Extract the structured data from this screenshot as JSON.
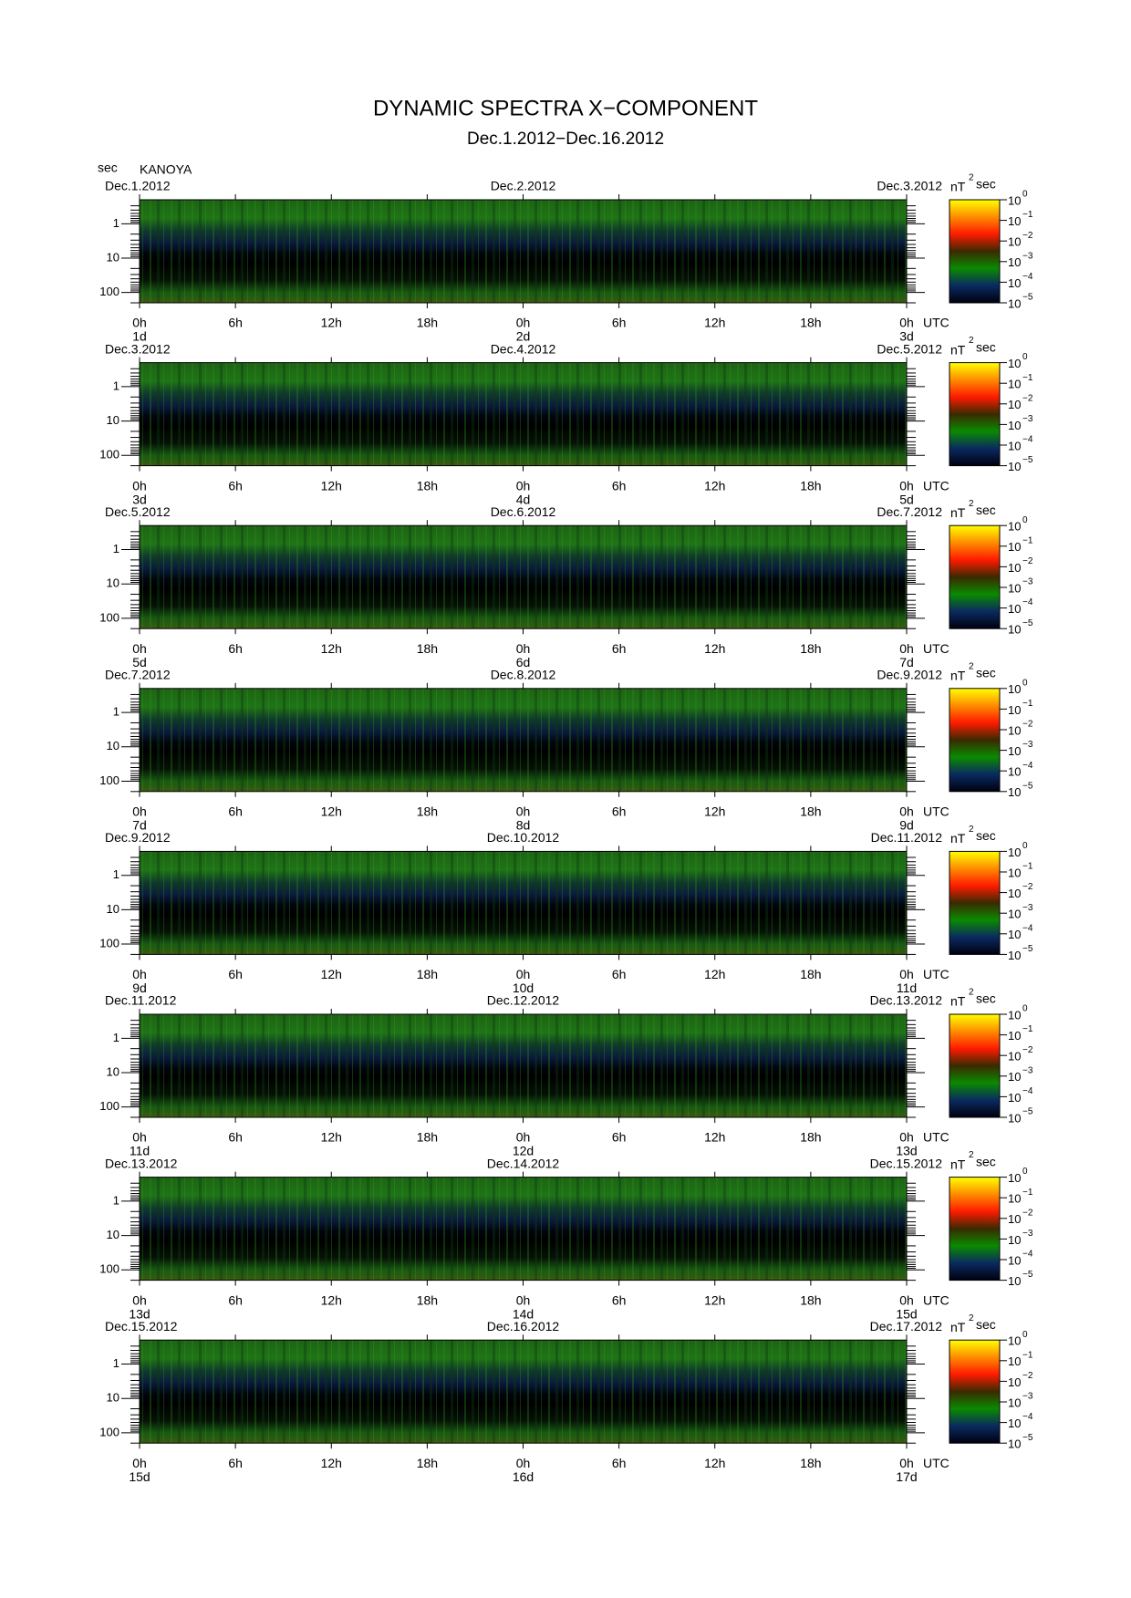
{
  "title": "DYNAMIC SPECTRA X−COMPONENT",
  "subtitle": "Dec.1.2012−Dec.16.2012",
  "ylabel": "sec",
  "station": "KANOYA",
  "chart_data": [
    {
      "type": "spectrogram",
      "date_labels": [
        "Dec.1.2012",
        "Dec.2.2012",
        "Dec.3.2012"
      ],
      "day_labels": [
        "1d",
        "2d",
        "3d"
      ],
      "xlabel": "UTC",
      "xlim": [
        0,
        48
      ],
      "xticks": [
        {
          "value": 0,
          "label": "0h"
        },
        {
          "value": 6,
          "label": "6h"
        },
        {
          "value": 12,
          "label": "12h"
        },
        {
          "value": 18,
          "label": "18h"
        },
        {
          "value": 24,
          "label": "0h"
        },
        {
          "value": 30,
          "label": "6h"
        },
        {
          "value": 36,
          "label": "12h"
        },
        {
          "value": 42,
          "label": "18h"
        },
        {
          "value": 48,
          "label": "0h"
        }
      ],
      "ylim": [
        0.2,
        200
      ],
      "yscale": "log",
      "yticks": [
        1,
        10,
        100
      ],
      "yminorticks": [
        0.3,
        0.4,
        0.5,
        0.6,
        0.7,
        0.8,
        0.9,
        2,
        3,
        4,
        5,
        6,
        7,
        8,
        9,
        20,
        30,
        40,
        50,
        60,
        70,
        80,
        90,
        200
      ],
      "colorbar_label": "nT",
      "colorbar_label_power": "2",
      "colorbar_label_unit": "sec",
      "colorbar_lim": [
        1e-05,
        1
      ],
      "colorbar_ticks": [
        {
          "value": 1,
          "label": "10",
          "exponent": "0"
        },
        {
          "value": 0.1,
          "label": "10",
          "exponent": "−1"
        },
        {
          "value": 0.01,
          "label": "10",
          "exponent": "−2"
        },
        {
          "value": 0.001,
          "label": "10",
          "exponent": "−3"
        },
        {
          "value": 0.0001,
          "label": "10",
          "exponent": "−4"
        },
        {
          "value": 1e-05,
          "label": "10",
          "exponent": "−5"
        }
      ]
    },
    {
      "type": "spectrogram",
      "date_labels": [
        "Dec.3.2012",
        "Dec.4.2012",
        "Dec.5.2012"
      ],
      "day_labels": [
        "3d",
        "4d",
        "5d"
      ],
      "xlabel": "UTC",
      "xlim": [
        0,
        48
      ],
      "xticks": [
        {
          "value": 0,
          "label": "0h"
        },
        {
          "value": 6,
          "label": "6h"
        },
        {
          "value": 12,
          "label": "12h"
        },
        {
          "value": 18,
          "label": "18h"
        },
        {
          "value": 24,
          "label": "0h"
        },
        {
          "value": 30,
          "label": "6h"
        },
        {
          "value": 36,
          "label": "12h"
        },
        {
          "value": 42,
          "label": "18h"
        },
        {
          "value": 48,
          "label": "0h"
        }
      ],
      "ylim": [
        0.2,
        200
      ],
      "yscale": "log",
      "yticks": [
        1,
        10,
        100
      ],
      "yminorticks": [
        0.3,
        0.4,
        0.5,
        0.6,
        0.7,
        0.8,
        0.9,
        2,
        3,
        4,
        5,
        6,
        7,
        8,
        9,
        20,
        30,
        40,
        50,
        60,
        70,
        80,
        90,
        200
      ],
      "colorbar_label": "nT",
      "colorbar_label_power": "2",
      "colorbar_label_unit": "sec",
      "colorbar_lim": [
        1e-05,
        1
      ],
      "colorbar_ticks": [
        {
          "value": 1,
          "label": "10",
          "exponent": "0"
        },
        {
          "value": 0.1,
          "label": "10",
          "exponent": "−1"
        },
        {
          "value": 0.01,
          "label": "10",
          "exponent": "−2"
        },
        {
          "value": 0.001,
          "label": "10",
          "exponent": "−3"
        },
        {
          "value": 0.0001,
          "label": "10",
          "exponent": "−4"
        },
        {
          "value": 1e-05,
          "label": "10",
          "exponent": "−5"
        }
      ]
    },
    {
      "type": "spectrogram",
      "date_labels": [
        "Dec.5.2012",
        "Dec.6.2012",
        "Dec.7.2012"
      ],
      "day_labels": [
        "5d",
        "6d",
        "7d"
      ],
      "xlabel": "UTC",
      "xlim": [
        0,
        48
      ],
      "xticks": [
        {
          "value": 0,
          "label": "0h"
        },
        {
          "value": 6,
          "label": "6h"
        },
        {
          "value": 12,
          "label": "12h"
        },
        {
          "value": 18,
          "label": "18h"
        },
        {
          "value": 24,
          "label": "0h"
        },
        {
          "value": 30,
          "label": "6h"
        },
        {
          "value": 36,
          "label": "12h"
        },
        {
          "value": 42,
          "label": "18h"
        },
        {
          "value": 48,
          "label": "0h"
        }
      ],
      "ylim": [
        0.2,
        200
      ],
      "yscale": "log",
      "yticks": [
        1,
        10,
        100
      ],
      "yminorticks": [
        0.3,
        0.4,
        0.5,
        0.6,
        0.7,
        0.8,
        0.9,
        2,
        3,
        4,
        5,
        6,
        7,
        8,
        9,
        20,
        30,
        40,
        50,
        60,
        70,
        80,
        90,
        200
      ],
      "colorbar_label": "nT",
      "colorbar_label_power": "2",
      "colorbar_label_unit": "sec",
      "colorbar_lim": [
        1e-05,
        1
      ],
      "colorbar_ticks": [
        {
          "value": 1,
          "label": "10",
          "exponent": "0"
        },
        {
          "value": 0.1,
          "label": "10",
          "exponent": "−1"
        },
        {
          "value": 0.01,
          "label": "10",
          "exponent": "−2"
        },
        {
          "value": 0.001,
          "label": "10",
          "exponent": "−3"
        },
        {
          "value": 0.0001,
          "label": "10",
          "exponent": "−4"
        },
        {
          "value": 1e-05,
          "label": "10",
          "exponent": "−5"
        }
      ]
    },
    {
      "type": "spectrogram",
      "date_labels": [
        "Dec.7.2012",
        "Dec.8.2012",
        "Dec.9.2012"
      ],
      "day_labels": [
        "7d",
        "8d",
        "9d"
      ],
      "xlabel": "UTC",
      "xlim": [
        0,
        48
      ],
      "xticks": [
        {
          "value": 0,
          "label": "0h"
        },
        {
          "value": 6,
          "label": "6h"
        },
        {
          "value": 12,
          "label": "12h"
        },
        {
          "value": 18,
          "label": "18h"
        },
        {
          "value": 24,
          "label": "0h"
        },
        {
          "value": 30,
          "label": "6h"
        },
        {
          "value": 36,
          "label": "12h"
        },
        {
          "value": 42,
          "label": "18h"
        },
        {
          "value": 48,
          "label": "0h"
        }
      ],
      "ylim": [
        0.2,
        200
      ],
      "yscale": "log",
      "yticks": [
        1,
        10,
        100
      ],
      "yminorticks": [
        0.3,
        0.4,
        0.5,
        0.6,
        0.7,
        0.8,
        0.9,
        2,
        3,
        4,
        5,
        6,
        7,
        8,
        9,
        20,
        30,
        40,
        50,
        60,
        70,
        80,
        90,
        200
      ],
      "colorbar_label": "nT",
      "colorbar_label_power": "2",
      "colorbar_label_unit": "sec",
      "colorbar_lim": [
        1e-05,
        1
      ],
      "colorbar_ticks": [
        {
          "value": 1,
          "label": "10",
          "exponent": "0"
        },
        {
          "value": 0.1,
          "label": "10",
          "exponent": "−1"
        },
        {
          "value": 0.01,
          "label": "10",
          "exponent": "−2"
        },
        {
          "value": 0.001,
          "label": "10",
          "exponent": "−3"
        },
        {
          "value": 0.0001,
          "label": "10",
          "exponent": "−4"
        },
        {
          "value": 1e-05,
          "label": "10",
          "exponent": "−5"
        }
      ]
    },
    {
      "type": "spectrogram",
      "date_labels": [
        "Dec.9.2012",
        "Dec.10.2012",
        "Dec.11.2012"
      ],
      "day_labels": [
        "9d",
        "10d",
        "11d"
      ],
      "xlabel": "UTC",
      "xlim": [
        0,
        48
      ],
      "xticks": [
        {
          "value": 0,
          "label": "0h"
        },
        {
          "value": 6,
          "label": "6h"
        },
        {
          "value": 12,
          "label": "12h"
        },
        {
          "value": 18,
          "label": "18h"
        },
        {
          "value": 24,
          "label": "0h"
        },
        {
          "value": 30,
          "label": "6h"
        },
        {
          "value": 36,
          "label": "12h"
        },
        {
          "value": 42,
          "label": "18h"
        },
        {
          "value": 48,
          "label": "0h"
        }
      ],
      "ylim": [
        0.2,
        200
      ],
      "yscale": "log",
      "yticks": [
        1,
        10,
        100
      ],
      "yminorticks": [
        0.3,
        0.4,
        0.5,
        0.6,
        0.7,
        0.8,
        0.9,
        2,
        3,
        4,
        5,
        6,
        7,
        8,
        9,
        20,
        30,
        40,
        50,
        60,
        70,
        80,
        90,
        200
      ],
      "colorbar_label": "nT",
      "colorbar_label_power": "2",
      "colorbar_label_unit": "sec",
      "colorbar_lim": [
        1e-05,
        1
      ],
      "colorbar_ticks": [
        {
          "value": 1,
          "label": "10",
          "exponent": "0"
        },
        {
          "value": 0.1,
          "label": "10",
          "exponent": "−1"
        },
        {
          "value": 0.01,
          "label": "10",
          "exponent": "−2"
        },
        {
          "value": 0.001,
          "label": "10",
          "exponent": "−3"
        },
        {
          "value": 0.0001,
          "label": "10",
          "exponent": "−4"
        },
        {
          "value": 1e-05,
          "label": "10",
          "exponent": "−5"
        }
      ]
    },
    {
      "type": "spectrogram",
      "date_labels": [
        "Dec.11.2012",
        "Dec.12.2012",
        "Dec.13.2012"
      ],
      "day_labels": [
        "11d",
        "12d",
        "13d"
      ],
      "xlabel": "UTC",
      "xlim": [
        0,
        48
      ],
      "xticks": [
        {
          "value": 0,
          "label": "0h"
        },
        {
          "value": 6,
          "label": "6h"
        },
        {
          "value": 12,
          "label": "12h"
        },
        {
          "value": 18,
          "label": "18h"
        },
        {
          "value": 24,
          "label": "0h"
        },
        {
          "value": 30,
          "label": "6h"
        },
        {
          "value": 36,
          "label": "12h"
        },
        {
          "value": 42,
          "label": "18h"
        },
        {
          "value": 48,
          "label": "0h"
        }
      ],
      "ylim": [
        0.2,
        200
      ],
      "yscale": "log",
      "yticks": [
        1,
        10,
        100
      ],
      "yminorticks": [
        0.3,
        0.4,
        0.5,
        0.6,
        0.7,
        0.8,
        0.9,
        2,
        3,
        4,
        5,
        6,
        7,
        8,
        9,
        20,
        30,
        40,
        50,
        60,
        70,
        80,
        90,
        200
      ],
      "colorbar_label": "nT",
      "colorbar_label_power": "2",
      "colorbar_label_unit": "sec",
      "colorbar_lim": [
        1e-05,
        1
      ],
      "colorbar_ticks": [
        {
          "value": 1,
          "label": "10",
          "exponent": "0"
        },
        {
          "value": 0.1,
          "label": "10",
          "exponent": "−1"
        },
        {
          "value": 0.01,
          "label": "10",
          "exponent": "−2"
        },
        {
          "value": 0.001,
          "label": "10",
          "exponent": "−3"
        },
        {
          "value": 0.0001,
          "label": "10",
          "exponent": "−4"
        },
        {
          "value": 1e-05,
          "label": "10",
          "exponent": "−5"
        }
      ]
    },
    {
      "type": "spectrogram",
      "date_labels": [
        "Dec.13.2012",
        "Dec.14.2012",
        "Dec.15.2012"
      ],
      "day_labels": [
        "13d",
        "14d",
        "15d"
      ],
      "xlabel": "UTC",
      "xlim": [
        0,
        48
      ],
      "xticks": [
        {
          "value": 0,
          "label": "0h"
        },
        {
          "value": 6,
          "label": "6h"
        },
        {
          "value": 12,
          "label": "12h"
        },
        {
          "value": 18,
          "label": "18h"
        },
        {
          "value": 24,
          "label": "0h"
        },
        {
          "value": 30,
          "label": "6h"
        },
        {
          "value": 36,
          "label": "12h"
        },
        {
          "value": 42,
          "label": "18h"
        },
        {
          "value": 48,
          "label": "0h"
        }
      ],
      "ylim": [
        0.2,
        200
      ],
      "yscale": "log",
      "yticks": [
        1,
        10,
        100
      ],
      "yminorticks": [
        0.3,
        0.4,
        0.5,
        0.6,
        0.7,
        0.8,
        0.9,
        2,
        3,
        4,
        5,
        6,
        7,
        8,
        9,
        20,
        30,
        40,
        50,
        60,
        70,
        80,
        90,
        200
      ],
      "colorbar_label": "nT",
      "colorbar_label_power": "2",
      "colorbar_label_unit": "sec",
      "colorbar_lim": [
        1e-05,
        1
      ],
      "colorbar_ticks": [
        {
          "value": 1,
          "label": "10",
          "exponent": "0"
        },
        {
          "value": 0.1,
          "label": "10",
          "exponent": "−1"
        },
        {
          "value": 0.01,
          "label": "10",
          "exponent": "−2"
        },
        {
          "value": 0.001,
          "label": "10",
          "exponent": "−3"
        },
        {
          "value": 0.0001,
          "label": "10",
          "exponent": "−4"
        },
        {
          "value": 1e-05,
          "label": "10",
          "exponent": "−5"
        }
      ]
    },
    {
      "type": "spectrogram",
      "date_labels": [
        "Dec.15.2012",
        "Dec.16.2012",
        "Dec.17.2012"
      ],
      "day_labels": [
        "15d",
        "16d",
        "17d"
      ],
      "xlabel": "UTC",
      "xlim": [
        0,
        48
      ],
      "xticks": [
        {
          "value": 0,
          "label": "0h"
        },
        {
          "value": 6,
          "label": "6h"
        },
        {
          "value": 12,
          "label": "12h"
        },
        {
          "value": 18,
          "label": "18h"
        },
        {
          "value": 24,
          "label": "0h"
        },
        {
          "value": 30,
          "label": "6h"
        },
        {
          "value": 36,
          "label": "12h"
        },
        {
          "value": 42,
          "label": "18h"
        },
        {
          "value": 48,
          "label": "0h"
        }
      ],
      "ylim": [
        0.2,
        200
      ],
      "yscale": "log",
      "yticks": [
        1,
        10,
        100
      ],
      "yminorticks": [
        0.3,
        0.4,
        0.5,
        0.6,
        0.7,
        0.8,
        0.9,
        2,
        3,
        4,
        5,
        6,
        7,
        8,
        9,
        20,
        30,
        40,
        50,
        60,
        70,
        80,
        90,
        200
      ],
      "colorbar_label": "nT",
      "colorbar_label_power": "2",
      "colorbar_label_unit": "sec",
      "colorbar_lim": [
        1e-05,
        1
      ],
      "colorbar_ticks": [
        {
          "value": 1,
          "label": "10",
          "exponent": "0"
        },
        {
          "value": 0.1,
          "label": "10",
          "exponent": "−1"
        },
        {
          "value": 0.01,
          "label": "10",
          "exponent": "−2"
        },
        {
          "value": 0.001,
          "label": "10",
          "exponent": "−3"
        },
        {
          "value": 0.0001,
          "label": "10",
          "exponent": "−4"
        },
        {
          "value": 1e-05,
          "label": "10",
          "exponent": "−5"
        }
      ]
    }
  ],
  "colorscale": [
    "#ffff00",
    "#ff8c00",
    "#ff1a00",
    "#3a2a00",
    "#0a8a00",
    "#0a2a60",
    "#000010"
  ]
}
